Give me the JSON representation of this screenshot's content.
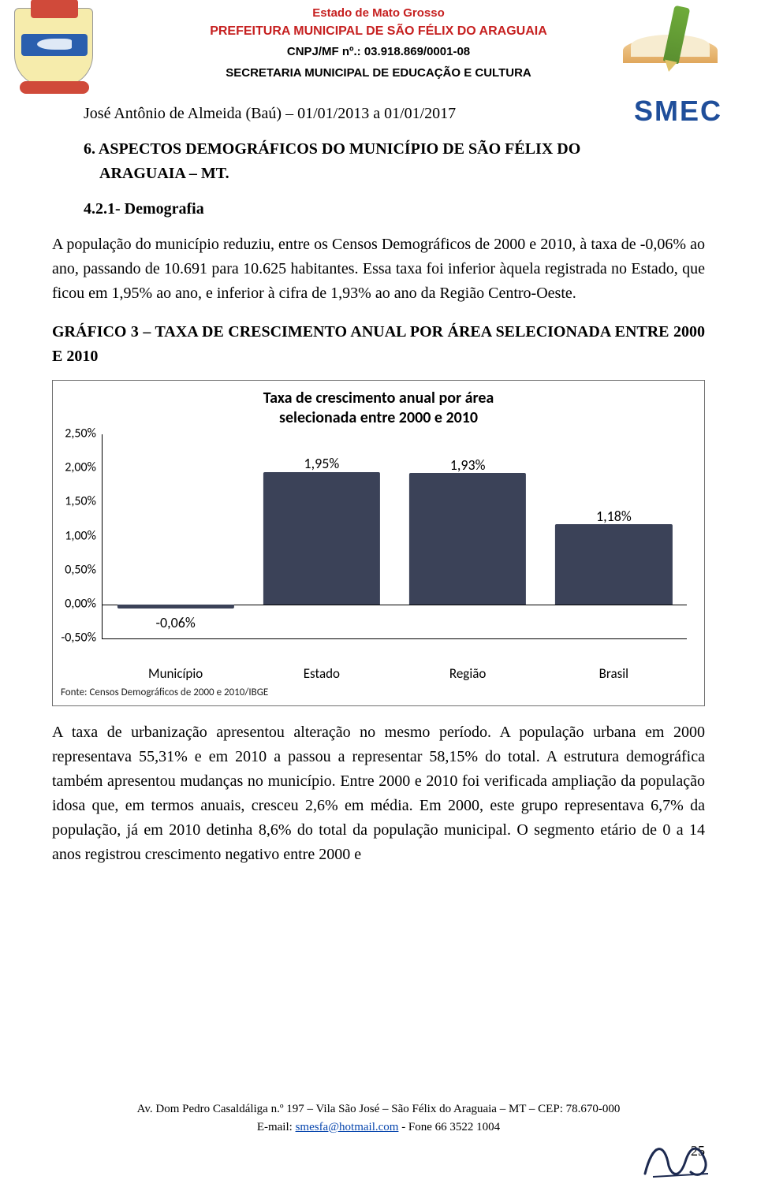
{
  "header": {
    "l1": "Estado de Mato Grosso",
    "l1_color": "#c62020",
    "l1_fontsize": 15,
    "l2": "PREFEITURA MUNICIPAL DE SÃO FÉLIX DO ARAGUAIA",
    "l2_color": "#c62020",
    "l2_fontsize": 16,
    "l3": "CNPJ/MF nº.: 03.918.869/0001-08",
    "l3_color": "#000000",
    "l3_fontsize": 15,
    "l4": "SECRETARIA MUNICIPAL DE EDUCAÇÃO E CULTURA",
    "l4_color": "#000000",
    "l4_fontsize": 15,
    "smec_text": "SMEC"
  },
  "body": {
    "p1": "José Antônio de Almeida (Baú) – 01/01/2013 a 01/01/2017",
    "section6_a": "6. ASPECTOS DEMOGRÁFICOS DO MUNICÍPIO DE SÃO FÉLIX DO",
    "section6_b": "ARAGUAIA – MT.",
    "sub421": "4.2.1- Demografia",
    "p2_a": "A população do município reduziu, entre os Censos Demográficos de 2000 e 2010, à taxa de -0,06% ao ano, passando de 10.691 para 10.625 habitantes. Essa taxa foi inferior àquela registrada no Estado, que ficou em 1,95% ao ano, e inferior à cifra de 1,93% ao ano da Região Centro-Oeste.",
    "graf3_a": "GRÁFICO 3 – TAXA DE CRESCIMENTO ANUAL POR ÁREA SELECIONADA ENTRE 2000 E 2010",
    "p3": "A taxa de urbanização apresentou alteração no mesmo período. A população urbana em 2000 representava 55,31% e em 2010 a passou a representar 58,15% do total. A estrutura demográfica também apresentou mudanças no município. Entre 2000 e 2010 foi verificada ampliação da população idosa que, em termos anuais, cresceu 2,6% em média. Em 2000, este grupo representava 6,7% da população, já em 2010 detinha 8,6% do total da população municipal. O segmento etário de 0 a 14 anos registrou crescimento negativo entre 2000 e"
  },
  "chart": {
    "type": "bar",
    "title_l1": "Taxa de crescimento anual por área",
    "title_l2": "selecionada entre 2000 e 2010",
    "categories": [
      "Município",
      "Estado",
      "Região",
      "Brasil"
    ],
    "values": [
      -0.06,
      1.95,
      1.93,
      1.18
    ],
    "value_labels": [
      "-0,06%",
      "1,95%",
      "1,93%",
      "1,18%"
    ],
    "y_min": -0.5,
    "y_max": 2.5,
    "y_step": 0.5,
    "y_ticks": [
      "2,50%",
      "2,00%",
      "1,50%",
      "1,00%",
      "0,50%",
      "0,00%",
      "-0,50%"
    ],
    "bar_color": "#3b4258",
    "axis_color": "#000000",
    "background": "#ffffff",
    "title_fontsize": 20,
    "label_fontsize": 17,
    "source": "Fonte: Censos Demográficos de 2000 e 2010/IBGE"
  },
  "footer": {
    "line1": "Av. Dom Pedro Casaldáliga n.º 197 – Vila São José – São Félix do Araguaia – MT – CEP: 78.670-000",
    "email_label": "E-mail: ",
    "email": "smesfa@hotmail.com",
    "phone": " - Fone 66 3522 1004",
    "page": "25"
  }
}
